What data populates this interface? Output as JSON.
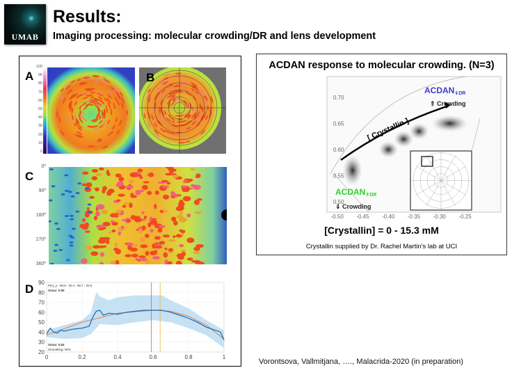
{
  "header": {
    "logo_text": "UMAB",
    "title": "Results:",
    "subtitle": "Imaging processing: molecular crowding/DR and lens development"
  },
  "left_panel": {
    "panel_a": {
      "label": "A",
      "colorbar_ticks": [
        "100",
        "90",
        "80",
        "70",
        "60",
        "50",
        "40",
        "30",
        "20",
        "10",
        "0"
      ]
    },
    "panel_b": {
      "label": "B"
    },
    "panel_c": {
      "label": "C",
      "y_ticks": [
        "0º",
        "90º",
        "180º",
        "270º",
        "360º"
      ]
    },
    "panel_d": {
      "label": "D"
    }
  },
  "chart_data": [
    {
      "type": "line",
      "panel": "D",
      "xlim": [
        0,
        1
      ],
      "ylim": [
        20,
        90
      ],
      "x_ticks": [
        "0",
        "0.2",
        "0.4",
        "0.6",
        "0.8",
        "1"
      ],
      "y_ticks": [
        "90",
        "80",
        "70",
        "60",
        "50",
        "40",
        "30",
        "20"
      ],
      "grid": true,
      "annotations": [
        "P(x)_y: -99.8 : 30.4 : 98.7 : 30.6",
        "Xmax: 0.59",
        "Xmax: 0.64",
        "Smoothing: 90%"
      ],
      "vertical_lines": [
        {
          "x": 0.59,
          "color": "#d0674a"
        },
        {
          "x": 0.64,
          "color": "#e8b84a"
        }
      ],
      "series": [
        {
          "role": "mean",
          "color": "#1f6fb5",
          "x": [
            0,
            0.02,
            0.04,
            0.06,
            0.08,
            0.1,
            0.12,
            0.15,
            0.2,
            0.24,
            0.26,
            0.28,
            0.3,
            0.32,
            0.35,
            0.4,
            0.45,
            0.5,
            0.55,
            0.6,
            0.65,
            0.7,
            0.75,
            0.8,
            0.85,
            0.9,
            0.95,
            0.98,
            1
          ],
          "y": [
            38,
            44,
            40,
            39,
            42,
            41,
            42,
            43,
            44,
            46,
            55,
            61,
            62,
            57,
            59,
            58,
            60,
            61,
            62,
            62,
            62,
            60,
            57,
            54,
            50,
            45,
            42,
            40,
            32
          ]
        },
        {
          "role": "fit",
          "color": "#d9824a",
          "x": [
            0,
            0.2,
            0.4,
            0.6,
            0.7,
            0.8,
            0.9,
            1
          ],
          "y": [
            37,
            50,
            59,
            62,
            61,
            56,
            47,
            33
          ]
        },
        {
          "role": "band_upper",
          "color": "#bcdcf2",
          "x": [
            0,
            0.1,
            0.2,
            0.25,
            0.28,
            0.3,
            0.35,
            0.4,
            0.5,
            0.6,
            0.65,
            0.7,
            0.8,
            0.9,
            1
          ],
          "y": [
            42,
            47,
            52,
            60,
            80,
            76,
            72,
            75,
            77,
            77,
            77,
            72,
            64,
            52,
            42
          ]
        },
        {
          "role": "band_lower",
          "color": "#bcdcf2",
          "x": [
            0,
            0.1,
            0.2,
            0.25,
            0.3,
            0.4,
            0.5,
            0.6,
            0.7,
            0.8,
            0.9,
            1
          ],
          "y": [
            35,
            33,
            34,
            38,
            48,
            47,
            50,
            52,
            50,
            44,
            37,
            24
          ]
        }
      ]
    },
    {
      "type": "scatter",
      "panel": "phasor",
      "xlim": [
        -0.52,
        -0.18
      ],
      "ylim": [
        0.48,
        0.74
      ],
      "x_ticks": [
        "-0.50",
        "-0.45",
        "-0.40",
        "-0.35",
        "-0.30",
        "-0.25"
      ],
      "y_ticks": [
        "0.70",
        "0.65",
        "0.60",
        "0.55",
        "0.50"
      ],
      "points": [
        {
          "x": -0.47,
          "y": 0.56
        },
        {
          "x": -0.4,
          "y": 0.6
        },
        {
          "x": -0.37,
          "y": 0.62
        },
        {
          "x": -0.34,
          "y": 0.635
        },
        {
          "x": -0.28,
          "y": 0.65
        }
      ],
      "annotations": {
        "arrow_label": "[ Crystallin ]",
        "top_label": "ACDAN",
        "top_sub": "⇓DR",
        "top_note": "⇑ Crowding",
        "bottom_label": "ACDAN",
        "bottom_sub": "⇑DR",
        "bottom_note": "⇓ Crowding"
      },
      "colors": {
        "top_label": "#3a3ad0",
        "bottom_label": "#2fd02f"
      }
    }
  ],
  "right_panel": {
    "title": "ACDAN response to molecular crowding. (N=3)",
    "concentration": "[Crystallin] = 0 - 15.3 mM",
    "note": "Crystallin supplied by Dr. Rachel Martin’s lab at UCI"
  },
  "citation": "Vorontsova, Vallmitjana, …., Malacrida-2020 (in preparation)"
}
